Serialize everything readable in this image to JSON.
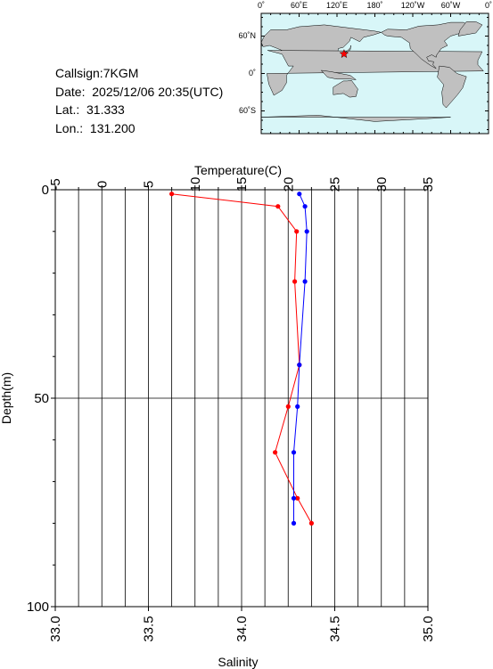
{
  "station": {
    "callsign": "Callsign:7KGM",
    "date": "Date:  2025/12/06 20:35(UTC)",
    "lat": "Lat.:  31.333",
    "lon": "Lon.:  131.200"
  },
  "map": {
    "top_ticks": [
      "0˚",
      "60˚E",
      "120˚E",
      "180˚",
      "120˚W",
      "60˚W",
      "0˚"
    ],
    "lat_ticks": [
      "60˚N",
      "0˚",
      "60˚S"
    ],
    "marker_lon_deg": 131.2,
    "marker_lat_deg": 31.333,
    "ocean_color": "#d8f6f8",
    "land_color": "#c0c0c0",
    "marker_color": "#ff0000"
  },
  "chart_data": {
    "type": "line",
    "ylabel": "Depth(m)",
    "ylim": [
      0,
      100
    ],
    "y_inverted": true,
    "yticks": [
      "0",
      "50",
      "100"
    ],
    "temperature_axis": {
      "label": "Temperature(C)",
      "lim": [
        -5,
        35
      ],
      "ticks": [
        "-5",
        "0",
        "5",
        "10",
        "15",
        "20",
        "25",
        "30",
        "35"
      ]
    },
    "salinity_axis": {
      "label": "Salinity",
      "lim": [
        33.0,
        35.0
      ],
      "ticks": [
        "33.0",
        "33.5",
        "34.0",
        "34.5",
        "35.0"
      ]
    },
    "grid": true,
    "series": [
      {
        "axis": "temperature",
        "color": "#ff0000",
        "depth": [
          1,
          4,
          10,
          22,
          42,
          52,
          63,
          74,
          80
        ],
        "values": [
          7.5,
          18.9,
          20.9,
          20.7,
          21.2,
          20.0,
          18.6,
          21.0,
          22.5
        ]
      },
      {
        "axis": "salinity",
        "color": "#0000ff",
        "depth": [
          1,
          4,
          10,
          22,
          42,
          52,
          63,
          74,
          80
        ],
        "values": [
          34.31,
          34.34,
          34.35,
          34.34,
          34.31,
          34.3,
          34.28,
          34.28,
          34.28
        ]
      }
    ]
  }
}
